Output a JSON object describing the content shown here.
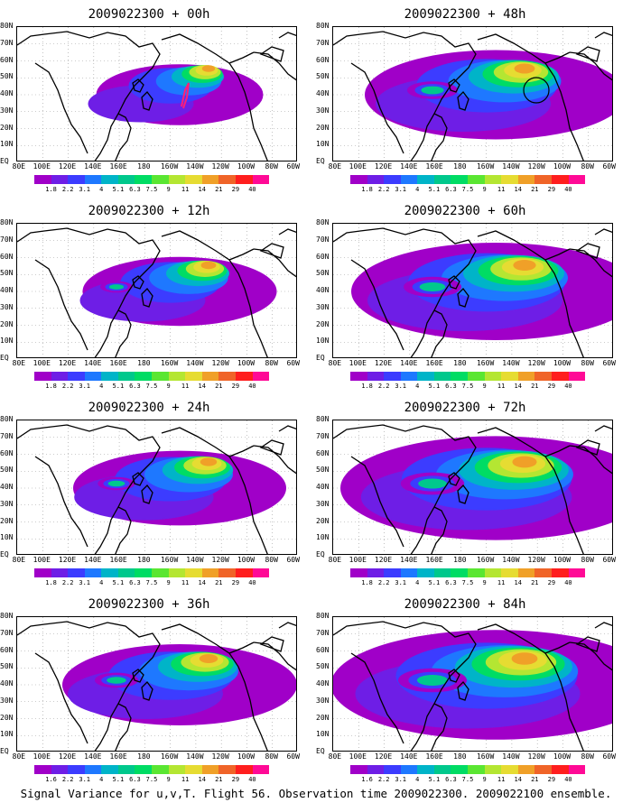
{
  "caption": "Signal Variance for u,v,T. Flight 56. Observation time 2009022300. 2009022100 ensemble.",
  "lat_labels": [
    "80N",
    "70N",
    "60N",
    "50N",
    "40N",
    "30N",
    "20N",
    "10N",
    "EQ"
  ],
  "lon_labels": [
    "80E",
    "100E",
    "120E",
    "140E",
    "160E",
    "180",
    "160W",
    "140W",
    "120W",
    "100W",
    "80W",
    "60W"
  ],
  "colorbar": {
    "levels": [
      "1.8",
      "2.2",
      "3.1",
      "4",
      "5.1",
      "6.3",
      "7.5",
      "9",
      "11",
      "14",
      "21",
      "29",
      "40"
    ],
    "levels_alt": [
      "1.6",
      "2.2",
      "3.1",
      "4",
      "5.1",
      "6.3",
      "7.5",
      "9",
      "11",
      "14",
      "21",
      "29",
      "40"
    ],
    "colors": [
      "#a000c8",
      "#6e1ee6",
      "#3c3cff",
      "#1e78ff",
      "#00b4c8",
      "#00c88c",
      "#00dc64",
      "#5ae632",
      "#b4e632",
      "#e6dc32",
      "#f0a028",
      "#f06428",
      "#ff1e1e",
      "#ff0a96"
    ]
  },
  "panels": [
    {
      "id": "00h",
      "title": "2009022300 + 00h",
      "intensity": 0.35,
      "cbar": "levels"
    },
    {
      "id": "48h",
      "title": "2009022300 + 48h",
      "intensity": 0.7,
      "cbar": "levels"
    },
    {
      "id": "12h",
      "title": "2009022300 + 12h",
      "intensity": 0.45,
      "cbar": "levels"
    },
    {
      "id": "60h",
      "title": "2009022300 + 60h",
      "intensity": 0.8,
      "cbar": "levels"
    },
    {
      "id": "24h",
      "title": "2009022300 + 24h",
      "intensity": 0.52,
      "cbar": "levels"
    },
    {
      "id": "72h",
      "title": "2009022300 + 72h",
      "intensity": 0.88,
      "cbar": "levels"
    },
    {
      "id": "36h",
      "title": "2009022300 + 36h",
      "intensity": 0.6,
      "cbar": "levels_alt"
    },
    {
      "id": "84h",
      "title": "2009022300 + 84h",
      "intensity": 0.95,
      "cbar": "levels_alt"
    }
  ]
}
